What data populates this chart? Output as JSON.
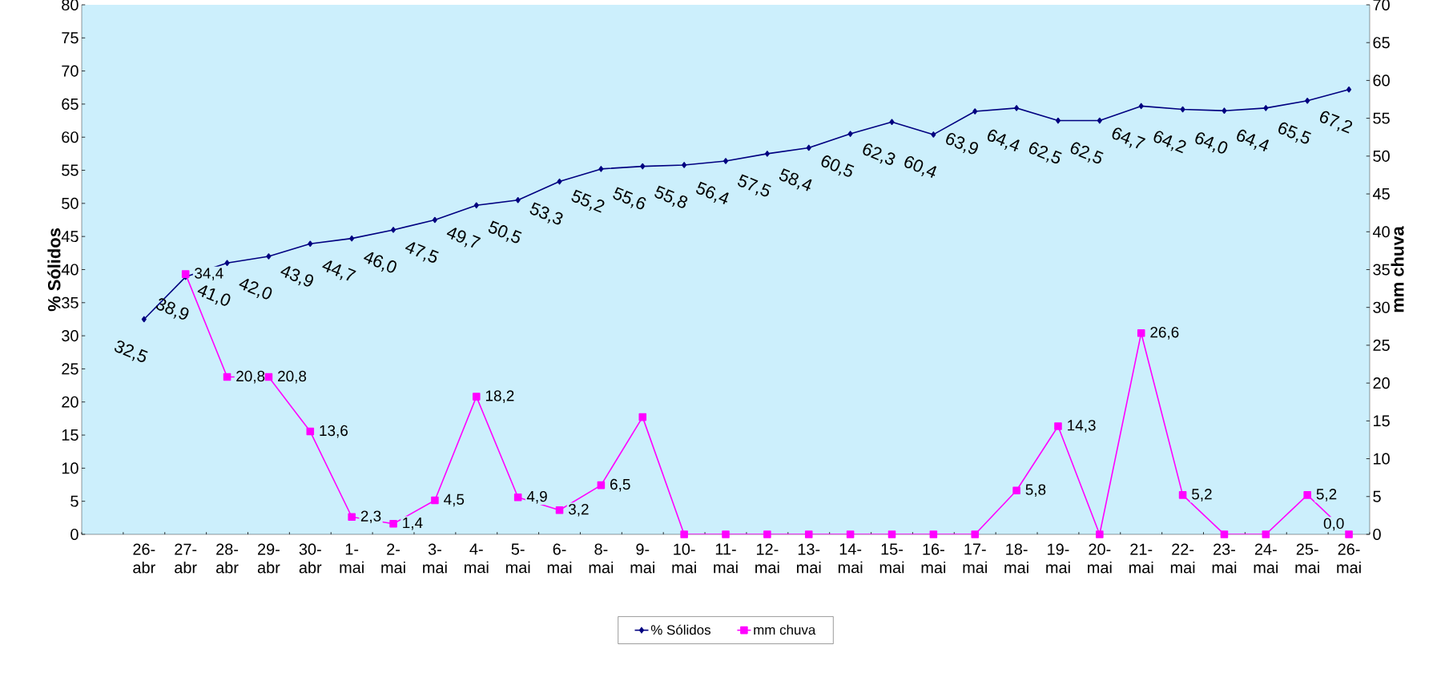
{
  "chart_data": {
    "type": "line",
    "ylabel": "% Sólidos",
    "y2label": "mm chuva",
    "categories": [
      null,
      "26-abr",
      "27-abr",
      "28-abr",
      "29-abr",
      "30-abr",
      "1-mai",
      "2-mai",
      "3-mai",
      "4-mai",
      "5-mai",
      "6-mai",
      "8-mai",
      "9-mai",
      "10-mai",
      "11-mai",
      "12-mai",
      "13-mai",
      "14-mai",
      "15-mai",
      "16-mai",
      "17-mai",
      "18-mai",
      "19-mai",
      "20-mai",
      "21-mai",
      "22-mai",
      "23-mai",
      "24-mai",
      "25-mai",
      "26-mai"
    ],
    "series": [
      {
        "name": "% Sólidos",
        "color": "#000080",
        "marker": "diamond",
        "values": [
          null,
          32.5,
          38.9,
          41.0,
          42.0,
          43.9,
          44.7,
          46.0,
          47.5,
          49.7,
          50.5,
          53.3,
          55.2,
          55.6,
          55.8,
          56.4,
          57.5,
          58.4,
          60.5,
          62.3,
          60.4,
          63.9,
          64.4,
          62.5,
          62.5,
          64.7,
          64.2,
          64.0,
          64.4,
          65.5,
          67.2
        ],
        "value_labels": [
          null,
          "32,5",
          "38,9",
          "41,0",
          "42,0",
          "43,9",
          "44,7",
          "46,0",
          "47,5",
          "49,7",
          "50,5",
          "53,3",
          "55,2",
          "55,6",
          "55,8",
          "56,4",
          "57,5",
          "58,4",
          "60,5",
          "62,3",
          "60,4",
          "63,9",
          "64,4",
          "62,5",
          "62,5",
          "64,7",
          "64,2",
          "64,0",
          "64,4",
          "65,5",
          "67,2"
        ]
      },
      {
        "name": "mm chuva",
        "color": "#ff00ff",
        "marker": "square",
        "axis": "y2",
        "values": [
          null,
          null,
          34.4,
          20.8,
          20.8,
          13.6,
          2.3,
          1.4,
          4.5,
          18.2,
          4.9,
          3.2,
          6.5,
          15.5,
          0,
          0,
          0,
          0,
          0,
          0,
          0,
          0,
          5.8,
          14.3,
          0,
          26.6,
          5.2,
          0,
          0,
          5.2,
          0
        ],
        "value_labels": [
          null,
          null,
          "34,4",
          "20,8",
          "20,8",
          "13,6",
          "2,3",
          "1,4",
          "4,5",
          "18,2",
          "4,9",
          "3,2",
          "6,5",
          null,
          null,
          null,
          null,
          null,
          null,
          null,
          null,
          null,
          "5,8",
          "14,3",
          null,
          "26,6",
          "5,2",
          null,
          null,
          "5,2",
          "0,0"
        ]
      }
    ],
    "ylim": [
      0,
      80
    ],
    "yticks": [
      0,
      5,
      10,
      15,
      20,
      25,
      30,
      35,
      40,
      45,
      50,
      55,
      60,
      65,
      70,
      75,
      80
    ],
    "y2lim": [
      0,
      70
    ],
    "y2ticks": [
      0,
      5,
      10,
      15,
      20,
      25,
      30,
      35,
      40,
      45,
      50,
      55,
      60,
      65,
      70
    ],
    "line_style": "solid",
    "grid": false,
    "legend": "bottom"
  }
}
